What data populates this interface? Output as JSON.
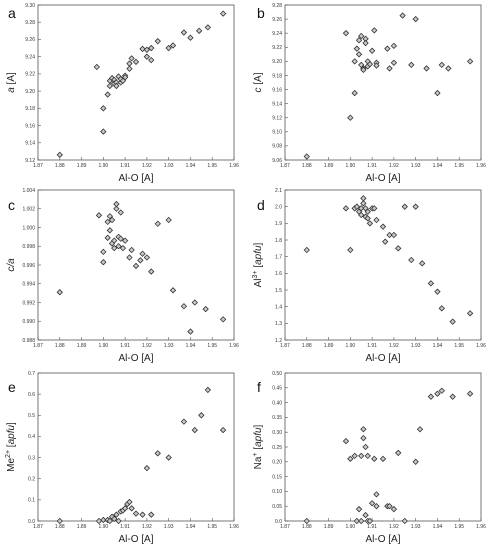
{
  "figure": {
    "panel_count": 6
  },
  "chart_data": [
    {
      "type": "scatter",
      "panel_label": "a",
      "xlabel": "Al-O [A]",
      "ylabel_parts": [
        {
          "text": "a",
          "italic": true
        },
        {
          "text": " [A]",
          "italic": false
        }
      ],
      "xlim": [
        1.87,
        1.96
      ],
      "ylim": [
        9.12,
        9.3
      ],
      "xticks": [
        "1.87",
        "1.88",
        "1.89",
        "1.90",
        "1.91",
        "1.92",
        "1.93",
        "1.94",
        "1.95",
        "1.96"
      ],
      "yticks": [
        "9.12",
        "9.14",
        "9.16",
        "9.18",
        "9.20",
        "9.22",
        "9.24",
        "9.26",
        "9.28",
        "9.30"
      ],
      "marker": "diamond",
      "x": [
        1.88,
        1.897,
        1.9,
        1.9,
        1.902,
        1.903,
        1.903,
        1.904,
        1.905,
        1.905,
        1.906,
        1.906,
        1.907,
        1.908,
        1.908,
        1.909,
        1.91,
        1.91,
        1.912,
        1.912,
        1.913,
        1.915,
        1.918,
        1.92,
        1.92,
        1.922,
        1.922,
        1.925,
        1.93,
        1.932,
        1.937,
        1.94,
        1.944,
        1.948,
        1.955
      ],
      "y": [
        9.126,
        9.228,
        9.153,
        9.18,
        9.196,
        9.212,
        9.206,
        9.215,
        9.213,
        9.209,
        9.21,
        9.206,
        9.217,
        9.21,
        9.214,
        9.212,
        9.218,
        9.216,
        9.232,
        9.226,
        9.238,
        9.234,
        9.249,
        9.248,
        9.24,
        9.25,
        9.236,
        9.258,
        9.25,
        9.253,
        9.268,
        9.262,
        9.27,
        9.274,
        9.29
      ]
    },
    {
      "type": "scatter",
      "panel_label": "b",
      "xlabel": "Al-O [A]",
      "ylabel_parts": [
        {
          "text": "c",
          "italic": true
        },
        {
          "text": " [A]",
          "italic": false
        }
      ],
      "xlim": [
        1.87,
        1.96
      ],
      "ylim": [
        9.06,
        9.28
      ],
      "xticks": [
        "1.87",
        "1.88",
        "1.89",
        "1.90",
        "1.91",
        "1.92",
        "1.93",
        "1.94",
        "1.95",
        "1.96"
      ],
      "yticks": [
        "9.06",
        "9.08",
        "9.10",
        "9.12",
        "9.14",
        "9.16",
        "9.18",
        "9.20",
        "9.22",
        "9.24",
        "9.26",
        "9.28"
      ],
      "marker": "diamond",
      "x": [
        1.88,
        1.898,
        1.9,
        1.902,
        1.902,
        1.903,
        1.904,
        1.904,
        1.905,
        1.905,
        1.906,
        1.906,
        1.907,
        1.907,
        1.908,
        1.908,
        1.909,
        1.91,
        1.911,
        1.912,
        1.912,
        1.917,
        1.918,
        1.92,
        1.92,
        1.924,
        1.928,
        1.93,
        1.935,
        1.94,
        1.942,
        1.945,
        1.955
      ],
      "y": [
        9.065,
        9.24,
        9.12,
        9.155,
        9.2,
        9.218,
        9.21,
        9.23,
        9.236,
        9.195,
        9.19,
        9.188,
        9.232,
        9.226,
        9.2,
        9.193,
        9.196,
        9.215,
        9.244,
        9.198,
        9.194,
        9.218,
        9.19,
        9.222,
        9.198,
        9.265,
        9.195,
        9.26,
        9.19,
        9.155,
        9.195,
        9.19,
        9.2
      ]
    },
    {
      "type": "scatter",
      "panel_label": "c",
      "xlabel": "Al-O [A]",
      "ylabel_parts": [
        {
          "text": "c/a",
          "italic": true
        }
      ],
      "xlim": [
        1.87,
        1.96
      ],
      "ylim": [
        0.988,
        1.004
      ],
      "xticks": [
        "1.87",
        "1.88",
        "1.89",
        "1.90",
        "1.91",
        "1.92",
        "1.93",
        "1.94",
        "1.95",
        "1.96"
      ],
      "yticks": [
        "0.988",
        "0.990",
        "0.992",
        "0.994",
        "0.996",
        "0.998",
        "1.000",
        "1.002",
        "1.004"
      ],
      "marker": "diamond",
      "x": [
        1.88,
        1.898,
        1.9,
        1.9,
        1.902,
        1.902,
        1.903,
        1.903,
        1.904,
        1.904,
        1.905,
        1.905,
        1.906,
        1.906,
        1.907,
        1.907,
        1.908,
        1.908,
        1.909,
        1.91,
        1.912,
        1.913,
        1.915,
        1.917,
        1.918,
        1.92,
        1.922,
        1.925,
        1.93,
        1.932,
        1.937,
        1.94,
        1.942,
        1.947,
        1.955
      ],
      "y": [
        0.9931,
        1.0013,
        0.9963,
        0.9974,
        1.0006,
        0.9989,
        1.0012,
        0.9997,
        1.0008,
        0.9983,
        0.9986,
        0.9978,
        1.002,
        1.0025,
        0.999,
        0.998,
        1.0016,
        0.9988,
        0.9978,
        0.9986,
        0.9968,
        0.9976,
        0.9959,
        0.9965,
        0.9972,
        0.9968,
        0.9953,
        1.0004,
        1.0008,
        0.9933,
        0.9916,
        0.9889,
        0.992,
        0.9913,
        0.9902
      ]
    },
    {
      "type": "scatter",
      "panel_label": "d",
      "xlabel": "Al-O [A]",
      "ylabel_parts": [
        {
          "text": "Al",
          "italic": false
        },
        {
          "text": "3+",
          "italic": false,
          "sup": true
        },
        {
          "text": " [",
          "italic": false
        },
        {
          "text": "apfu",
          "italic": true
        },
        {
          "text": "]",
          "italic": false
        }
      ],
      "xlim": [
        1.87,
        1.96
      ],
      "ylim": [
        1.2,
        2.1
      ],
      "xticks": [
        "1.87",
        "1.88",
        "1.89",
        "1.90",
        "1.91",
        "1.92",
        "1.93",
        "1.94",
        "1.95",
        "1.96"
      ],
      "yticks": [
        "1.2",
        "1.3",
        "1.4",
        "1.5",
        "1.6",
        "1.7",
        "1.8",
        "1.9",
        "2.0",
        "2.1"
      ],
      "marker": "diamond",
      "x": [
        1.88,
        1.898,
        1.9,
        1.902,
        1.903,
        1.904,
        1.905,
        1.905,
        1.906,
        1.906,
        1.907,
        1.907,
        1.908,
        1.908,
        1.909,
        1.91,
        1.911,
        1.912,
        1.915,
        1.916,
        1.918,
        1.92,
        1.922,
        1.925,
        1.928,
        1.93,
        1.933,
        1.937,
        1.94,
        1.942,
        1.947,
        1.955
      ],
      "y": [
        1.74,
        1.99,
        1.74,
        1.99,
        2.0,
        1.97,
        1.95,
        1.99,
        2.02,
        2.05,
        1.94,
        1.99,
        1.97,
        1.93,
        1.9,
        1.99,
        1.99,
        1.92,
        1.88,
        1.79,
        1.83,
        1.83,
        1.75,
        2.0,
        1.68,
        2.0,
        1.66,
        1.54,
        1.49,
        1.39,
        1.31,
        1.36
      ]
    },
    {
      "type": "scatter",
      "panel_label": "e",
      "xlabel": "Al-O [A]",
      "ylabel_parts": [
        {
          "text": "Me",
          "italic": false
        },
        {
          "text": "2+",
          "italic": false,
          "sup": true
        },
        {
          "text": " [",
          "italic": false
        },
        {
          "text": "apfu",
          "italic": true
        },
        {
          "text": "]",
          "italic": false
        }
      ],
      "xlim": [
        1.87,
        1.96
      ],
      "ylim": [
        0.0,
        0.7
      ],
      "xticks": [
        "1.87",
        "1.88",
        "1.89",
        "1.90",
        "1.91",
        "1.92",
        "1.93",
        "1.94",
        "1.95",
        "1.96"
      ],
      "yticks": [
        "0.0",
        "0.1",
        "0.2",
        "0.3",
        "0.4",
        "0.5",
        "0.6",
        "0.7"
      ],
      "marker": "diamond",
      "x": [
        1.88,
        1.898,
        1.9,
        1.902,
        1.903,
        1.904,
        1.905,
        1.906,
        1.907,
        1.908,
        1.909,
        1.91,
        1.911,
        1.912,
        1.913,
        1.915,
        1.918,
        1.92,
        1.922,
        1.925,
        1.93,
        1.937,
        1.942,
        1.945,
        1.948,
        1.955
      ],
      "y": [
        0.0,
        0.0,
        0.005,
        0.005,
        0.0,
        0.02,
        0.01,
        0.03,
        0.0,
        0.045,
        0.05,
        0.06,
        0.08,
        0.09,
        0.06,
        0.035,
        0.03,
        0.25,
        0.03,
        0.32,
        0.3,
        0.47,
        0.43,
        0.5,
        0.62,
        0.43
      ]
    },
    {
      "type": "scatter",
      "panel_label": "f",
      "xlabel": "Al-O [A]",
      "ylabel_parts": [
        {
          "text": "Na",
          "italic": false
        },
        {
          "text": "+",
          "italic": false,
          "sup": true
        },
        {
          "text": " [",
          "italic": false
        },
        {
          "text": "apfu",
          "italic": true
        },
        {
          "text": "]",
          "italic": false
        }
      ],
      "xlim": [
        1.87,
        1.96
      ],
      "ylim": [
        0.0,
        0.5
      ],
      "xticks": [
        "1.87",
        "1.88",
        "1.89",
        "1.90",
        "1.91",
        "1.92",
        "1.93",
        "1.94",
        "1.95",
        "1.96"
      ],
      "yticks": [
        "0.0",
        "0.05",
        "0.10",
        "0.15",
        "0.20",
        "0.25",
        "0.30",
        "0.35",
        "0.40",
        "0.45",
        "0.50"
      ],
      "marker": "diamond",
      "x": [
        1.88,
        1.898,
        1.9,
        1.902,
        1.903,
        1.904,
        1.905,
        1.905,
        1.906,
        1.906,
        1.907,
        1.907,
        1.908,
        1.908,
        1.909,
        1.91,
        1.911,
        1.912,
        1.912,
        1.915,
        1.917,
        1.918,
        1.92,
        1.922,
        1.925,
        1.93,
        1.932,
        1.937,
        1.94,
        1.942,
        1.947,
        1.955
      ],
      "y": [
        0.0,
        0.27,
        0.21,
        0.22,
        0.0,
        0.04,
        0.22,
        0.0,
        0.28,
        0.31,
        0.02,
        0.25,
        0.22,
        0.0,
        0.0,
        0.06,
        0.21,
        0.09,
        0.05,
        0.21,
        0.05,
        0.05,
        0.04,
        0.23,
        0.0,
        0.2,
        0.31,
        0.42,
        0.43,
        0.44,
        0.42,
        0.43
      ]
    }
  ]
}
